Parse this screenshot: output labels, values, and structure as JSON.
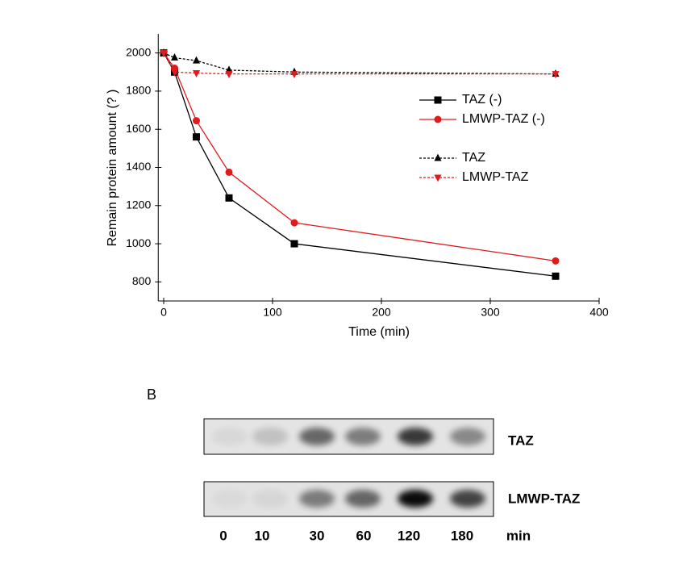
{
  "chart_data": {
    "type": "line",
    "y_label": "Remain protein amount (? )",
    "x_label": "Time (min)",
    "x": [
      0,
      10,
      30,
      60,
      120,
      360
    ],
    "series": [
      {
        "name": "TAZ (-)",
        "color": "#000000",
        "marker": "square",
        "dash": "solid",
        "values": [
          2000,
          1900,
          1560,
          1240,
          1000,
          830
        ]
      },
      {
        "name": "LMWP-TAZ (-)",
        "color": "#e31a1c",
        "marker": "circle",
        "dash": "solid",
        "values": [
          2000,
          1920,
          1645,
          1375,
          1110,
          910
        ]
      },
      {
        "name": "TAZ",
        "color": "#000000",
        "marker": "triangle-up",
        "dash": "dashed",
        "values": [
          2000,
          1975,
          1960,
          1910,
          1900,
          1890
        ]
      },
      {
        "name": "LMWP-TAZ",
        "color": "#e31a1c",
        "marker": "triangle-down",
        "dash": "dashed",
        "values": [
          2000,
          1900,
          1895,
          1890,
          1890,
          1890
        ]
      }
    ],
    "xlim": [
      -5,
      400
    ],
    "xticks": [
      0,
      100,
      200,
      300,
      400
    ],
    "ylim": [
      700,
      2100
    ],
    "yticks": [
      800,
      1000,
      1200,
      1400,
      1600,
      1800,
      2000
    ],
    "grid": false
  },
  "blot": {
    "panel_label": "B",
    "rows": [
      "TAZ",
      "LMWP-TAZ"
    ],
    "lanes": [
      "0",
      "10",
      "30",
      "60",
      "120",
      "180"
    ],
    "unit": "min"
  }
}
